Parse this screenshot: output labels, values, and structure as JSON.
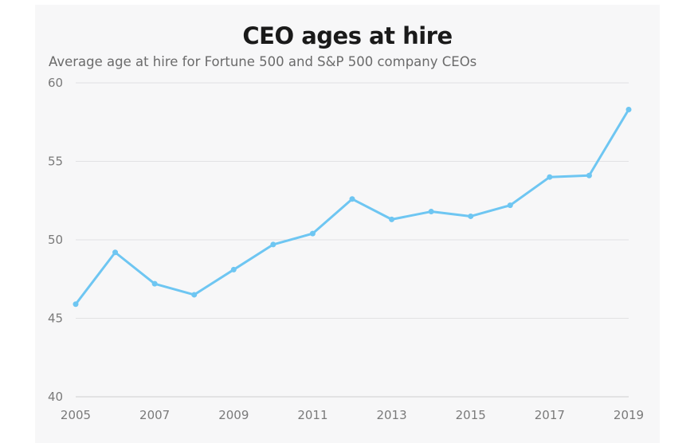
{
  "chart_data": {
    "type": "line",
    "title": "CEO ages at hire",
    "subtitle": "Average age at hire for Fortune 500 and S&P 500 company CEOs",
    "x": [
      2005,
      2006,
      2007,
      2008,
      2009,
      2010,
      2011,
      2012,
      2013,
      2014,
      2015,
      2016,
      2017,
      2018,
      2019
    ],
    "series": [
      {
        "values": [
          45.9,
          49.2,
          47.2,
          46.5,
          48.1,
          49.7,
          50.4,
          52.6,
          51.3,
          51.8,
          51.5,
          52.2,
          54.0,
          54.1,
          58.3
        ],
        "color": "#6ec6f2"
      }
    ],
    "xticks": [
      "2005",
      "2007",
      "2009",
      "2011",
      "2013",
      "2015",
      "2017",
      "2019"
    ],
    "yticks": [
      "40",
      "45",
      "50",
      "55",
      "60"
    ],
    "xlim": [
      2005,
      2019
    ],
    "ylim": [
      40,
      60
    ],
    "grid": "horizontal",
    "legend": "none",
    "xlabel": "",
    "ylabel": ""
  }
}
